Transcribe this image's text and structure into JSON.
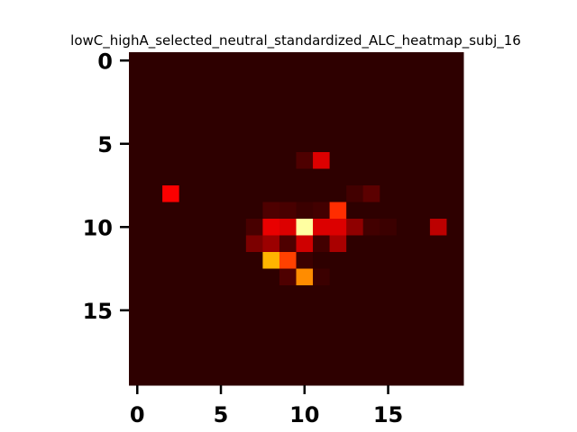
{
  "chart_data": {
    "type": "heatmap",
    "title": "lowC_highA_selected_neutral_standardized_ALC_heatmap_subj_16",
    "rows": 20,
    "cols": 20,
    "colormap": "hot",
    "vmin": 0,
    "vmax": 1,
    "background_value": 0.03,
    "x_ticks": [
      0,
      5,
      10,
      15
    ],
    "y_ticks": [
      0,
      5,
      10,
      15
    ],
    "x_tick_labels": [
      "0",
      "5",
      "10",
      "15"
    ],
    "y_tick_labels": [
      "0",
      "5",
      "10",
      "15"
    ],
    "cells": [
      {
        "row": 6,
        "col": 10,
        "value": 0.08
      },
      {
        "row": 6,
        "col": 11,
        "value": 0.3
      },
      {
        "row": 8,
        "col": 2,
        "value": 0.35
      },
      {
        "row": 8,
        "col": 13,
        "value": 0.06
      },
      {
        "row": 8,
        "col": 14,
        "value": 0.1
      },
      {
        "row": 9,
        "col": 8,
        "value": 0.08
      },
      {
        "row": 9,
        "col": 9,
        "value": 0.07
      },
      {
        "row": 9,
        "col": 10,
        "value": 0.05
      },
      {
        "row": 9,
        "col": 11,
        "value": 0.06
      },
      {
        "row": 9,
        "col": 12,
        "value": 0.42
      },
      {
        "row": 10,
        "col": 7,
        "value": 0.07
      },
      {
        "row": 10,
        "col": 8,
        "value": 0.32
      },
      {
        "row": 10,
        "col": 9,
        "value": 0.3
      },
      {
        "row": 10,
        "col": 10,
        "value": 0.9
      },
      {
        "row": 10,
        "col": 11,
        "value": 0.3
      },
      {
        "row": 10,
        "col": 12,
        "value": 0.3
      },
      {
        "row": 10,
        "col": 13,
        "value": 0.18
      },
      {
        "row": 10,
        "col": 14,
        "value": 0.06
      },
      {
        "row": 10,
        "col": 15,
        "value": 0.05
      },
      {
        "row": 10,
        "col": 18,
        "value": 0.25
      },
      {
        "row": 11,
        "col": 7,
        "value": 0.15
      },
      {
        "row": 11,
        "col": 8,
        "value": 0.2
      },
      {
        "row": 11,
        "col": 9,
        "value": 0.08
      },
      {
        "row": 11,
        "col": 10,
        "value": 0.28
      },
      {
        "row": 11,
        "col": 11,
        "value": 0.06
      },
      {
        "row": 11,
        "col": 12,
        "value": 0.22
      },
      {
        "row": 12,
        "col": 8,
        "value": 0.62
      },
      {
        "row": 12,
        "col": 9,
        "value": 0.45
      },
      {
        "row": 12,
        "col": 10,
        "value": 0.05
      },
      {
        "row": 13,
        "col": 9,
        "value": 0.08
      },
      {
        "row": 13,
        "col": 10,
        "value": 0.56
      },
      {
        "row": 13,
        "col": 11,
        "value": 0.05
      }
    ]
  }
}
